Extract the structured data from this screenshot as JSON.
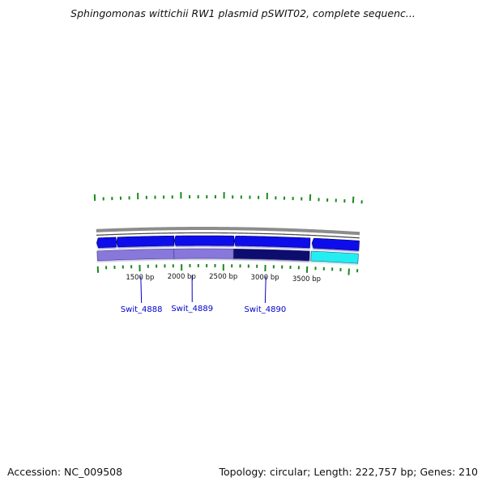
{
  "title": "Sphingomonas wittichii RW1 plasmid pSWIT02, complete sequenc...",
  "footer": {
    "accession": "Accession: NC_009508",
    "stats": "Topology: circular; Length: 222,757 bp; Genes: 210"
  },
  "colors": {
    "backbone": "#8c8c8c",
    "forward_gene": "#0a0aeb",
    "reverse_gene_light": "#8878dc",
    "reverse_gene_dark": "#0a0a70",
    "reverse_gene_cyan": "#22eef2",
    "tick": "#1a8a1a",
    "gene_label": "#0000cc"
  },
  "bp_labels": [
    {
      "pos": 1500,
      "text": "1500 bp"
    },
    {
      "pos": 2000,
      "text": "2000 bp"
    },
    {
      "pos": 2500,
      "text": "2500 bp"
    },
    {
      "pos": 3000,
      "text": "3000 bp"
    },
    {
      "pos": 3500,
      "text": "3500 bp"
    }
  ],
  "gene_labels": [
    {
      "pos": 1510,
      "text": "Swit_4888"
    },
    {
      "pos": 2125,
      "text": "Swit_4889"
    },
    {
      "pos": 3010,
      "text": "Swit_4890"
    }
  ],
  "genes_forward": [
    {
      "start": 1000,
      "end": 1228
    },
    {
      "start": 1232,
      "end": 1912
    },
    {
      "start": 1916,
      "end": 2620
    },
    {
      "start": 2624,
      "end": 3520
    },
    {
      "start": 3545,
      "end": 4100
    }
  ],
  "genes_reverse": [
    {
      "start": 1000,
      "end": 1912,
      "color": "reverse_gene_light"
    },
    {
      "start": 1912,
      "end": 2620,
      "color": "reverse_gene_light"
    },
    {
      "start": 2620,
      "end": 3522,
      "color": "reverse_gene_dark"
    },
    {
      "start": 3540,
      "end": 4100,
      "color": "reverse_gene_cyan"
    }
  ]
}
